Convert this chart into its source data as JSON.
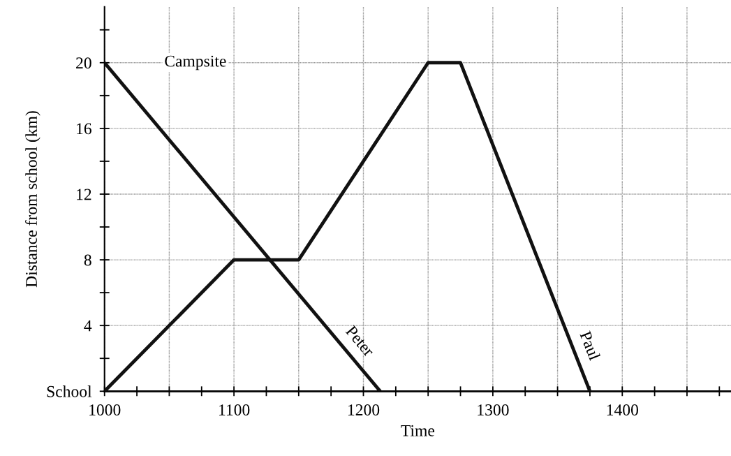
{
  "chart_data": {
    "type": "line",
    "xlabel": "Time",
    "ylabel": "Distance from school (km)",
    "xlim": [
      1000,
      1484
    ],
    "ylim": [
      0,
      23.4
    ],
    "xticks": [
      1000,
      {
        "value": 1025,
        "label": null
      },
      {
        "value": 1050,
        "label": null
      },
      {
        "value": 1075,
        "label": null
      },
      1100,
      {
        "value": 1125,
        "label": null
      },
      {
        "value": 1150,
        "label": null
      },
      {
        "value": 1175,
        "label": null
      },
      1200,
      {
        "value": 1225,
        "label": null
      },
      {
        "value": 1250,
        "label": null
      },
      {
        "value": 1275,
        "label": null
      },
      1300,
      {
        "value": 1325,
        "label": null
      },
      {
        "value": 1350,
        "label": null
      },
      {
        "value": 1375,
        "label": null
      },
      1400,
      {
        "value": 1425,
        "label": null
      },
      {
        "value": 1450,
        "label": null
      },
      {
        "value": 1475,
        "label": null
      }
    ],
    "yticks": [
      {
        "value": 0,
        "label": "School"
      },
      {
        "value": 2,
        "label": null
      },
      4,
      {
        "value": 6,
        "label": null
      },
      8,
      {
        "value": 10,
        "label": null
      },
      12,
      {
        "value": 14,
        "label": null
      },
      16,
      {
        "value": 18,
        "label": null
      },
      20,
      {
        "value": 22,
        "label": null
      }
    ],
    "grid": true,
    "series": [
      {
        "name": "Peter",
        "color": "#111111",
        "x": [
          1000,
          1213
        ],
        "values": [
          20,
          0
        ]
      },
      {
        "name": "Paul",
        "color": "#111111",
        "x": [
          1000,
          1100,
          1150,
          1250,
          1275,
          1375
        ],
        "values": [
          0,
          8,
          8,
          20,
          20,
          0
        ]
      }
    ],
    "annotations": [
      "Campsite"
    ]
  }
}
